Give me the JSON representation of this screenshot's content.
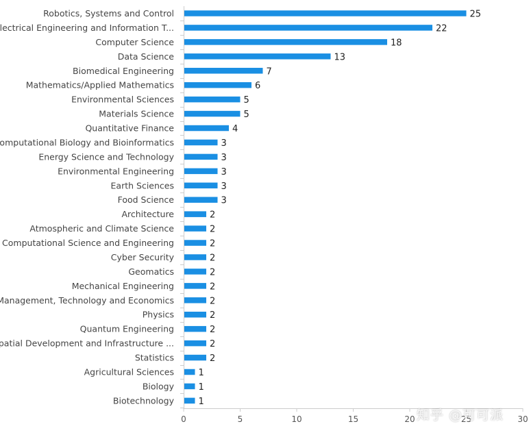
{
  "chart_data": {
    "type": "bar",
    "orientation": "horizontal",
    "categories": [
      "Robotics, Systems and Control",
      "Electrical Engineering and Information T...",
      "Computer Science",
      "Data Science",
      "Biomedical Engineering",
      "Mathematics/Applied Mathematics",
      "Environmental Sciences",
      "Materials Science",
      "Quantitative Finance",
      "Computational Biology and Bioinformatics",
      "Energy Science and Technology",
      "Environmental Engineering",
      "Earth Sciences",
      "Food Science",
      "Architecture",
      "Atmospheric and Climate Science",
      "Computational Science and Engineering",
      "Cyber Security",
      "Geomatics",
      "Mechanical Engineering",
      "Management, Technology and Economics",
      "Physics",
      "Quantum Engineering",
      "Spatial Development and Infrastructure ...",
      "Statistics",
      "Agricultural Sciences",
      "Biology",
      "Biotechnology"
    ],
    "values": [
      25,
      22,
      18,
      13,
      7,
      6,
      5,
      5,
      4,
      3,
      3,
      3,
      3,
      3,
      2,
      2,
      2,
      2,
      2,
      2,
      2,
      2,
      2,
      2,
      2,
      1,
      1,
      1
    ],
    "xlim": [
      0,
      30
    ],
    "xticks": [
      0,
      5,
      10,
      15,
      20,
      25,
      30
    ],
    "title": "",
    "xlabel": "",
    "ylabel": "",
    "grid": false,
    "bar_color": "#1a8fe3"
  },
  "watermark": "知乎 @可可派"
}
